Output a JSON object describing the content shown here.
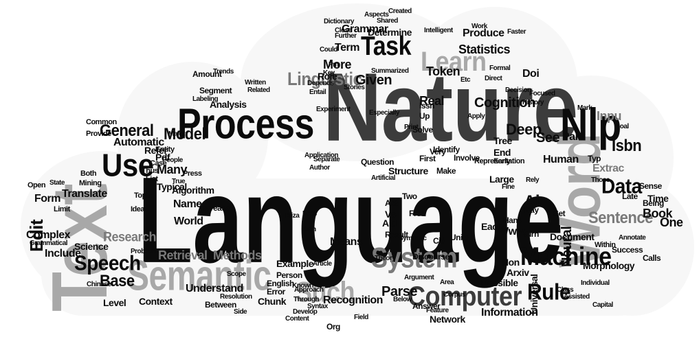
{
  "colors": {
    "background": "#ffffff",
    "black": "#0b0b0b",
    "dark_gray": "#3c3c3c",
    "mid_gray": "#7a7a7a",
    "light_gray": "#a8a8a8",
    "pale_gray": "#cfcfcf"
  },
  "words": {
    "language": "Language",
    "nature": "Nature",
    "text": "Text",
    "process": "Process",
    "word": "Word",
    "semantic": "Semantic",
    "machine": "Machine",
    "system": "System",
    "computer": "Computer",
    "learn": "Learn",
    "task": "Task",
    "nlp": "Nlp",
    "use": "Use",
    "speech": "Speech",
    "such": "Such",
    "data": "Data",
    "model": "Model",
    "sentence": "Sentence",
    "rule": "Rule",
    "linguistic": "Linguistic",
    "edit": "Edit",
    "general": "General",
    "base": "Base",
    "isbn": "Isbn",
    "research": "Research",
    "retrieval": "Retrieval",
    "methods": "Methods",
    "parse": "Parse",
    "information": "Information",
    "deep": "Deep",
    "neural": "Neural",
    "cognition": "Cognition",
    "statistics": "Statistics",
    "more": "More",
    "given": "Given",
    "analysis": "Analysis",
    "automatic": "Automatic",
    "translate": "Translate",
    "form": "Form",
    "complex": "Complex",
    "include": "Include",
    "science": "Science",
    "context": "Context",
    "understand": "Understand",
    "example": "Example",
    "morphology": "Morphology",
    "document": "Document",
    "book": "Book",
    "one": "One",
    "time": "Time",
    "many": "Many",
    "world": "World",
    "name": "Name",
    "role": "Role",
    "real": "Real",
    "token": "Token",
    "term": "Term",
    "grammar": "Grammar",
    "produce": "Produce",
    "determine": "Determine",
    "result": "Result",
    "structure": "Structure",
    "question": "Question",
    "identify": "Identify",
    "human": "Human",
    "ai": "Ai",
    "www": "Www",
    "means": "Means",
    "recognition": "Recognition",
    "network": "Network",
    "arxiv": "Arxiv",
    "universal": "Universal",
    "level": "Level",
    "refer": "Refer",
    "see": "See",
    "tree": "Tree",
    "end": "End",
    "large": "Large",
    "pdf": "Pdf",
    "algorithm": "Algorithm",
    "increase": "Increase",
    "typical": "Typical",
    "part": "Part",
    "doi": "Doi",
    "extract": "Extrac",
    "input": "Inpu",
    "possible": "Possible",
    "non": "Non",
    "each": "Each",
    "chunk": "Chunk",
    "between": "Between",
    "english": "English",
    "person": "Person",
    "error": "Error",
    "answer": "Answer",
    "theory": "Theory",
    "article": "Article",
    "discourse": "Discourse",
    "two": "Two",
    "act": "Act",
    "aid": "Aid",
    "vs": "Vs",
    "free": "Free",
    "cs": "Cs",
    "cid": "Cid",
    "units": "Units",
    "make": "Make",
    "involve": "Involve",
    "representation": "Representation",
    "first": "First",
    "solve": "Solve",
    "up": "Up",
    "issn": "Issn",
    "very": "Very",
    "turn": "Turn",
    "hand": "Hand",
    "sense": "Sense",
    "being": "Being",
    "late": "Late",
    "calls": "Calls",
    "success": "Success",
    "set": "Set",
    "within": "Within",
    "bay": "Bay",
    "type": "Typ",
    "amount": "Amount",
    "segment": "Segment",
    "limit": "Limit",
    "open": "Open",
    "both": "Both",
    "provide": "Provide",
    "common": "Common",
    "mining": "Mining",
    "topic": "Topic",
    "idea": "Idea",
    "list": "List",
    "thus": "Thus",
    "entity": "Entity",
    "case": "Case",
    "press": "Press",
    "trends": "Trends",
    "labeling": "Labeling",
    "written": "Written",
    "related": "Related",
    "symbolic": "Symbolic",
    "formal": "Formal",
    "further": "Further",
    "close": "Close",
    "aspects": "Aspects",
    "intelligent": "Intelligent",
    "work": "Work",
    "faster": "Faster",
    "summarized": "Summarized",
    "apply": "Apply",
    "direct": "Direct",
    "decision": "Decision",
    "history": "History",
    "focused": "Focused",
    "mark": "Mark",
    "boal": "Boal",
    "early": "Early",
    "rely": "Rely",
    "those": "Those",
    "fine": "Fine",
    "capital": "Capital",
    "individual": "Individual",
    "class": "Class",
    "assisted": "Assisted",
    "chinese": "Chinese",
    "grammatical": "Grammatical",
    "problem": "Problem",
    "develop": "Develop",
    "approach": "Approach",
    "corpus": "Corpus",
    "area": "Area",
    "argument": "Argument",
    "feature": "Feature",
    "resolution": "Resolution",
    "content": "Content",
    "org": "Org",
    "state": "State",
    "major": "Major",
    "people": "People",
    "true": "True",
    "syntax": "Syntax",
    "application": "Application",
    "author": "Author",
    "separate": "Separate",
    "artificial": "Artificial",
    "especially": "Especially",
    "entail": "Entail",
    "depends": "Depends",
    "experiment": "Experiment",
    "eliza": "Eliza",
    "print": "Print",
    "scope": "Scope",
    "annotate": "Annotate",
    "stories": "Stories",
    "below": "Below",
    "known": "Known",
    "through": "Through",
    "shared": "Shared",
    "dictionary": "Dictionary",
    "created": "Created",
    "etc": "Etc",
    "key": "Key",
    "could": "Could",
    "pm": "Pm",
    "less": "Less",
    "side": "Side",
    "rich": "Rich",
    "field": "Field"
  }
}
